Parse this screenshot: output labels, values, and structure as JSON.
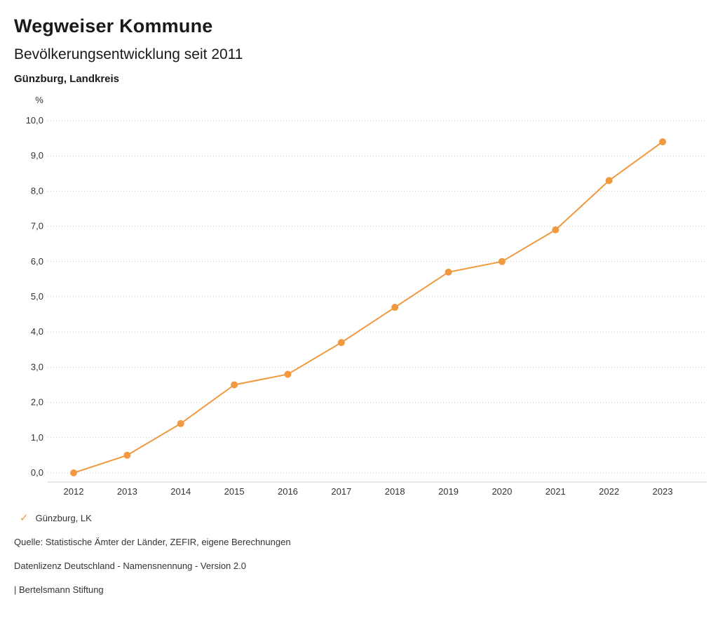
{
  "header": {
    "title": "Wegweiser Kommune",
    "subtitle": "Bevölkerungsentwicklung seit 2011",
    "region": "Günzburg, Landkreis"
  },
  "chart_data": {
    "type": "line",
    "title": "Bevölkerungsentwicklung seit 2011",
    "unit_label": "%",
    "x": [
      "2012",
      "2013",
      "2014",
      "2015",
      "2016",
      "2017",
      "2018",
      "2019",
      "2020",
      "2021",
      "2022",
      "2023"
    ],
    "series": [
      {
        "name": "Günzburg, LK",
        "values": [
          0.0,
          0.5,
          1.4,
          2.5,
          2.8,
          3.7,
          4.7,
          5.7,
          6.0,
          6.9,
          8.3,
          9.4
        ],
        "color": "#f0993f"
      }
    ],
    "ylim": [
      0,
      10
    ],
    "ytick_step": 1,
    "ytick_labels": [
      "0,0",
      "1,0",
      "2,0",
      "3,0",
      "4,0",
      "5,0",
      "6,0",
      "7,0",
      "8,0",
      "9,0",
      "10,0"
    ],
    "grid": true,
    "grid_style": "dotted",
    "grid_color": "#c9c9c9",
    "axis_line_color": "#cccccc",
    "tick_label_color": "#333333",
    "legend_position": "bottom"
  },
  "legend": {
    "check_icon": "✓",
    "items": [
      {
        "label": "Günzburg, LK",
        "color": "#f0993f"
      }
    ]
  },
  "footer": {
    "source": "Quelle: Statistische Ämter der Länder, ZEFIR, eigene Berechnungen",
    "license": "Datenlizenz Deutschland - Namensnennung - Version 2.0",
    "attribution": "| Bertelsmann Stiftung"
  }
}
